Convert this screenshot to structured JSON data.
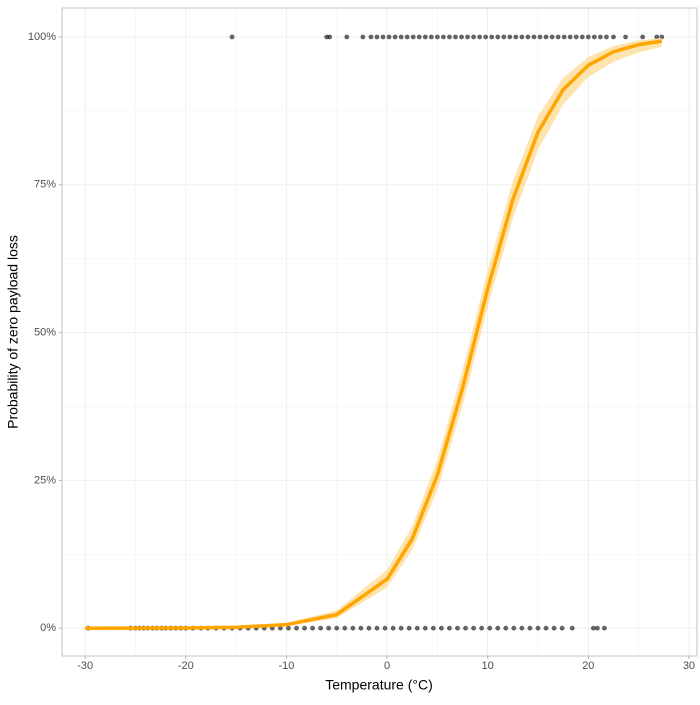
{
  "chart_data": {
    "type": "scatter",
    "x_label": "Temperature (°C)",
    "y_label": "Probability of zero payload loss",
    "xlim": [
      -32.3,
      30.8
    ],
    "xticks": [
      -30,
      -20,
      -10,
      0,
      10,
      20,
      30
    ],
    "ylim": [
      -4.7,
      104.9
    ],
    "yticks": [
      {
        "value": 0,
        "label": "0%"
      },
      {
        "value": 25,
        "label": "25%"
      },
      {
        "value": 50,
        "label": "50%"
      },
      {
        "value": 75,
        "label": "75%"
      },
      {
        "value": 100,
        "label": "100%"
      }
    ],
    "grid": true,
    "point_color": "#000000",
    "groups": [
      {
        "y": 0,
        "x": [
          -29.7,
          -25.5,
          -25,
          -24.6,
          -24.2,
          -23.8,
          -23.3,
          -22.9,
          -22.4,
          -22,
          -21.5,
          -21,
          -20.5,
          -20,
          -19.3,
          -18.5,
          -17.8,
          -17,
          -16.2,
          -15.4,
          -14.6,
          -13.8,
          -13,
          -12.2,
          -11.4,
          -10.6,
          -9.8,
          -9,
          -8.2,
          -7.4,
          -6.6,
          -5.8,
          -5,
          -4.2,
          -3.4,
          -2.6,
          -1.8,
          -1,
          -0.2,
          0.6,
          1.4,
          2.2,
          3,
          3.8,
          4.6,
          5.4,
          6.2,
          7,
          7.8,
          8.6,
          9.4,
          10.2,
          11,
          11.8,
          12.6,
          13.4,
          14.2,
          15,
          15.8,
          16.6,
          17.4,
          18.4,
          20.5,
          20.9,
          21.6
        ]
      },
      {
        "y": 100,
        "x": [
          -15.4,
          -6,
          -5.7,
          -4,
          -2.4,
          -1.6,
          -1,
          -0.4,
          0.2,
          0.8,
          1.4,
          2,
          2.6,
          3.2,
          3.8,
          4.4,
          5,
          5.6,
          6.2,
          6.8,
          7.4,
          8,
          8.6,
          9.2,
          9.8,
          10.4,
          11,
          11.6,
          12.2,
          12.8,
          13.4,
          14,
          14.6,
          15.2,
          15.8,
          16.4,
          17,
          17.6,
          18.2,
          18.8,
          19.4,
          20,
          20.6,
          21.2,
          21.8,
          22.5,
          23.7,
          25.4,
          26.8,
          27.3
        ]
      }
    ],
    "fit": {
      "color": "#ffa500",
      "band_color": "#ffe0a3",
      "x": [
        -30,
        -25,
        -20,
        -15,
        -10,
        -5,
        0,
        2.5,
        5,
        7.5,
        10,
        12.5,
        15,
        17.5,
        20,
        22.5,
        25,
        27.3
      ],
      "values": [
        0,
        0.01,
        0.04,
        0.16,
        0.6,
        2.3,
        8.3,
        15.1,
        25.9,
        40.6,
        57.4,
        72.5,
        83.9,
        91.1,
        95.2,
        97.5,
        98.7,
        99.3
      ],
      "lower": [
        0,
        0,
        0.02,
        0.09,
        0.4,
        1.7,
        6.9,
        13.2,
        23.4,
        37.6,
        54.3,
        69.3,
        80.9,
        88.6,
        93.2,
        95.8,
        97.4,
        98.3
      ],
      "upper": [
        0.01,
        0.03,
        0.08,
        0.27,
        0.9,
        3.0,
        9.9,
        17.2,
        28.5,
        43.7,
        60.5,
        75.6,
        86.6,
        93.1,
        96.6,
        98.5,
        99.4,
        99.8
      ]
    }
  }
}
